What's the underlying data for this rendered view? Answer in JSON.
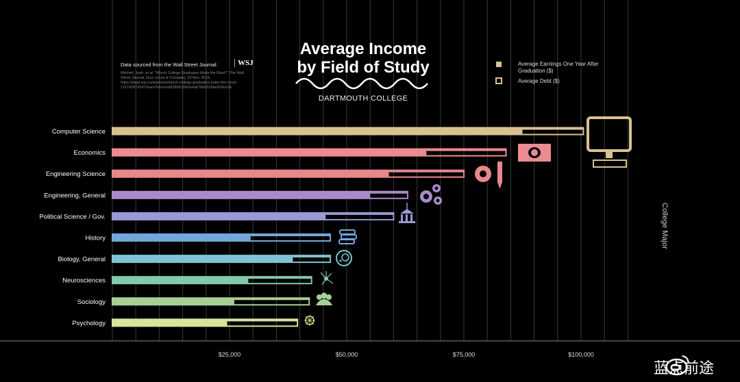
{
  "title_line1": "Average Income",
  "title_line2": "by Field of Study",
  "subtitle": "DARTMOUTH COLLEGE",
  "source": {
    "heading": "Data sourced from the Wall Street Journal:",
    "logo": "WSJ",
    "citation": "Mitchell, Josh, et al. \"Which College Graduates Make the Most?\" The Wall Street Journal, Dow Jones & Company, 20 Nov. 2019, https://www.wsj.com/articles/which-college-graduates-make-the-most-11574267424?shareToken=st62896c3fe2e4a878a0016be824a10e"
  },
  "legend": {
    "earnings_label": "Average Earnings One Year After Graduation ($)",
    "debt_label": "Average Debt ($)",
    "earnings_color": "#d9c28f",
    "debt_color": "#d9c28f"
  },
  "ylabel": "College Major",
  "watermark": {
    "text": "蓝点前途"
  },
  "chart_data": {
    "type": "bar",
    "orientation": "horizontal",
    "categories": [
      "Computer Science",
      "Economics",
      "Engineering Science",
      "Engineering, General",
      "Political Science / Gov.",
      "History",
      "Biology, General",
      "Neurosciences",
      "Sociology",
      "Psychology"
    ],
    "series": [
      {
        "name": "Average Earnings One Year After Graduation ($)",
        "values": [
          100500,
          84000,
          75000,
          63000,
          60000,
          46500,
          46500,
          42500,
          42000,
          39500
        ]
      },
      {
        "name": "Average Debt ($)",
        "values": [
          87500,
          67000,
          59000,
          55000,
          45500,
          29500,
          38500,
          29000,
          26000,
          24500
        ]
      }
    ],
    "colors": [
      "#d9c28f",
      "#eb8c92",
      "#e9878f",
      "#a78bc9",
      "#9a98d6",
      "#73a7da",
      "#7fc4d3",
      "#84c9ac",
      "#a8cf94",
      "#dbe49a"
    ],
    "x_ticks": [
      25000,
      50000,
      75000,
      100000
    ],
    "x_tick_labels": [
      "$25,000",
      "$50,000",
      "$75,000",
      "$100,000"
    ],
    "xlim": [
      0,
      110000
    ],
    "icons": [
      "computer-icon",
      "money-icon",
      "gear-pencil-icon",
      "gears-icon",
      "capitol-building-icon",
      "books-icon",
      "cell-icon",
      "neuron-icon",
      "people-icon",
      "brain-icon"
    ],
    "grid": true
  }
}
